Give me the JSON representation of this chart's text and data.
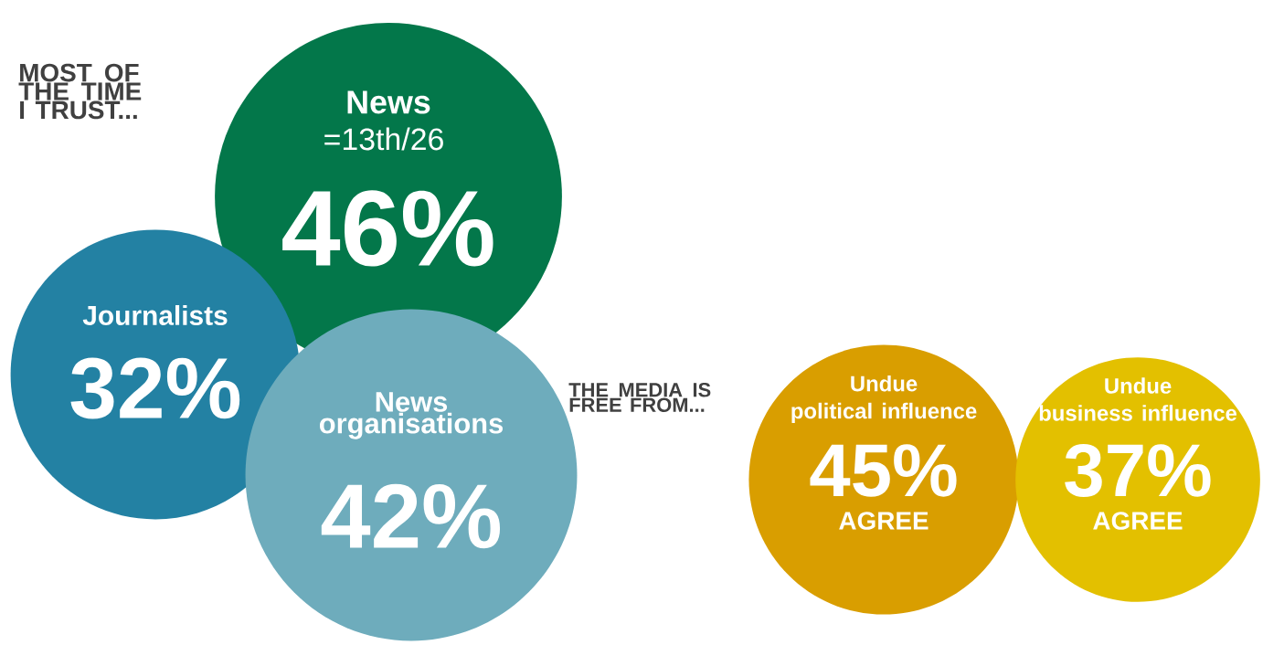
{
  "chart_data": [
    {
      "type": "other",
      "title": "MOST OF THE TIME I TRUST...",
      "categories": [
        "News",
        "Journalists",
        "News organisations"
      ],
      "values": [
        46,
        32,
        42
      ],
      "value_labels": [
        "46%",
        "32%",
        "42%"
      ],
      "colors": [
        "#03774a",
        "#2381a3",
        "#6eacbc"
      ],
      "annotations": [
        "=13th/26"
      ]
    },
    {
      "type": "other",
      "title": "THE MEDIA IS FREE FROM...",
      "categories": [
        "Undue political influence",
        "Undue business influence"
      ],
      "values": [
        45,
        37
      ],
      "value_labels": [
        "45%",
        "37%"
      ],
      "colors": [
        "#d99e00",
        "#e3c000"
      ],
      "annotations": [
        "AGREE",
        "AGREE"
      ]
    }
  ]
}
